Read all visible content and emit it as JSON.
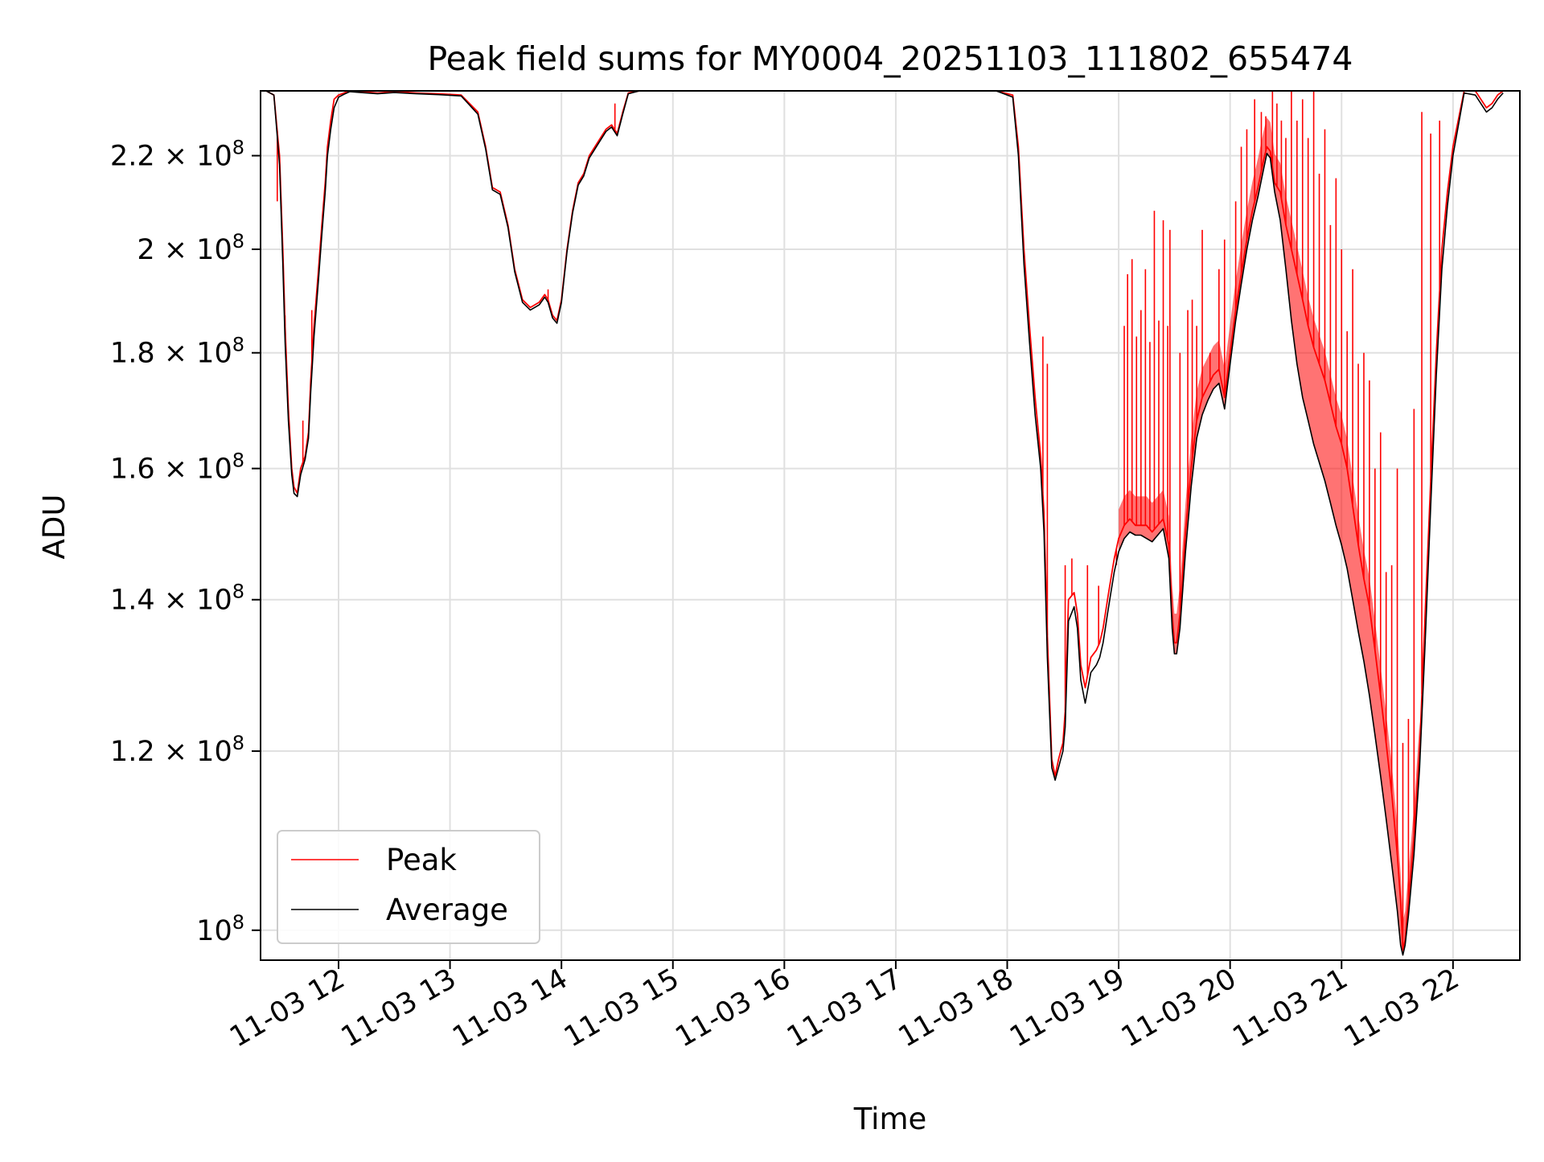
{
  "chart_data": {
    "type": "line",
    "title": "Peak field sums for MY0004_20251103_111802_655474",
    "xlabel": "Time",
    "ylabel": "ADU",
    "yscale": "log",
    "xlim": [
      11.3,
      22.6
    ],
    "ylim": [
      97000000.0,
      235000000.0
    ],
    "grid": true,
    "legend": {
      "placement": "lower-left",
      "entries": [
        "Peak",
        "Average"
      ]
    },
    "x_ticks": [
      {
        "value": 12,
        "label": "11-03 12"
      },
      {
        "value": 13,
        "label": "11-03 13"
      },
      {
        "value": 14,
        "label": "11-03 14"
      },
      {
        "value": 15,
        "label": "11-03 15"
      },
      {
        "value": 16,
        "label": "11-03 16"
      },
      {
        "value": 17,
        "label": "11-03 17"
      },
      {
        "value": 18,
        "label": "11-03 18"
      },
      {
        "value": 19,
        "label": "11-03 19"
      },
      {
        "value": 20,
        "label": "11-03 20"
      },
      {
        "value": 21,
        "label": "11-03 21"
      },
      {
        "value": 22,
        "label": "11-03 22"
      }
    ],
    "y_ticks": [
      {
        "value": 100000000.0,
        "mantissa": "",
        "base": "10",
        "exp": "8"
      },
      {
        "value": 120000000.0,
        "mantissa": "1.2 × ",
        "base": "10",
        "exp": "8"
      },
      {
        "value": 140000000.0,
        "mantissa": "1.4 × ",
        "base": "10",
        "exp": "8"
      },
      {
        "value": 160000000.0,
        "mantissa": "1.6 × ",
        "base": "10",
        "exp": "8"
      },
      {
        "value": 180000000.0,
        "mantissa": "1.8 × ",
        "base": "10",
        "exp": "8"
      },
      {
        "value": 200000000.0,
        "mantissa": "2 × ",
        "base": "10",
        "exp": "8"
      },
      {
        "value": 220000000.0,
        "mantissa": "2.2 × ",
        "base": "10",
        "exp": "8"
      }
    ],
    "series": [
      {
        "name": "Peak",
        "color": "#ff0000",
        "x": [
          11.3,
          11.35,
          11.42,
          11.47,
          11.5,
          11.52,
          11.55,
          11.58,
          11.6,
          11.63,
          11.66,
          11.7,
          11.73,
          11.75,
          11.78,
          11.82,
          11.85,
          11.88,
          11.9,
          11.93,
          11.96,
          12.0,
          12.05,
          12.1,
          12.2,
          12.35,
          12.5,
          12.7,
          12.9,
          13.1,
          13.25,
          13.32,
          13.38,
          13.45,
          13.52,
          13.58,
          13.65,
          13.72,
          13.8,
          13.85,
          13.88,
          13.92,
          13.96,
          14.0,
          14.05,
          14.1,
          14.15,
          14.2,
          14.25,
          14.3,
          14.35,
          14.4,
          14.45,
          14.5,
          14.55,
          14.6,
          14.7,
          15.0,
          16.0,
          17.0,
          17.9,
          18.05,
          18.1,
          18.15,
          18.2,
          18.25,
          18.3,
          18.33,
          18.36,
          18.4,
          18.43,
          18.46,
          18.48,
          18.5,
          18.52,
          18.55,
          18.6,
          18.63,
          18.66,
          18.7,
          18.75,
          18.8,
          18.83,
          18.86,
          18.88,
          18.9,
          18.93,
          18.96,
          19.0,
          19.05,
          19.1,
          19.15,
          19.2,
          19.25,
          19.3,
          19.35,
          19.4,
          19.45,
          19.48,
          19.5,
          19.52,
          19.55,
          19.6,
          19.65,
          19.7,
          19.75,
          19.8,
          19.85,
          19.9,
          19.95,
          20.0,
          20.05,
          20.1,
          20.15,
          20.2,
          20.25,
          20.3,
          20.33,
          20.36,
          20.4,
          20.45,
          20.5,
          20.55,
          20.6,
          20.65,
          20.7,
          20.75,
          20.8,
          20.85,
          20.9,
          20.95,
          21.0,
          21.05,
          21.1,
          21.15,
          21.2,
          21.25,
          21.3,
          21.35,
          21.4,
          21.45,
          21.5,
          21.53,
          21.55,
          21.57,
          21.6,
          21.65,
          21.7,
          21.75,
          21.8,
          21.85,
          21.9,
          21.95,
          22.0,
          22.1,
          22.2,
          22.3,
          22.35,
          22.4,
          22.45
        ],
        "values": [
          235000000.0,
          235000000.0,
          234000000.0,
          220000000.0,
          200000000.0,
          185000000.0,
          170000000.0,
          160000000.0,
          157000000.0,
          156000000.0,
          160000000.0,
          162000000.0,
          166000000.0,
          175000000.0,
          185000000.0,
          196000000.0,
          205000000.0,
          214000000.0,
          222000000.0,
          228000000.0,
          233000000.0,
          234000000.0,
          234500000.0,
          235000000.0,
          234800000.0,
          234500000.0,
          234800000.0,
          234500000.0,
          234300000.0,
          234000000.0,
          230000000.0,
          222000000.0,
          213000000.0,
          212000000.0,
          205000000.0,
          196000000.0,
          190000000.0,
          188500000.0,
          189500000.0,
          191000000.0,
          190000000.0,
          187000000.0,
          186000000.0,
          190000000.0,
          200000000.0,
          208000000.0,
          214000000.0,
          216000000.0,
          220000000.0,
          222000000.0,
          224000000.0,
          226000000.0,
          227000000.0,
          225000000.0,
          230000000.0,
          234500000.0,
          235000000.0,
          235000000.0,
          235000000.0,
          235000000.0,
          235000000.0,
          234000000.0,
          222000000.0,
          200000000.0,
          185000000.0,
          172000000.0,
          162000000.0,
          153000000.0,
          135000000.0,
          119000000.0,
          117000000.0,
          119000000.0,
          120000000.0,
          121000000.0,
          125000000.0,
          140000000.0,
          141000000.0,
          138000000.0,
          131000000.0,
          128000000.0,
          132000000.0,
          133000000.0,
          134000000.0,
          136000000.0,
          138000000.0,
          140000000.0,
          143000000.0,
          146000000.0,
          149000000.0,
          151000000.0,
          152000000.0,
          151000000.0,
          151000000.0,
          151000000.0,
          150000000.0,
          151000000.0,
          152000000.0,
          148000000.0,
          138000000.0,
          134000000.0,
          134000000.0,
          138000000.0,
          150000000.0,
          160000000.0,
          168000000.0,
          172000000.0,
          174000000.0,
          176000000.0,
          177000000.0,
          172000000.0,
          180000000.0,
          188000000.0,
          195000000.0,
          202000000.0,
          208000000.0,
          213000000.0,
          219000000.0,
          222000000.0,
          221000000.0,
          214000000.0,
          212000000.0,
          205000000.0,
          200000000.0,
          195000000.0,
          190000000.0,
          185000000.0,
          181000000.0,
          178000000.0,
          175000000.0,
          171000000.0,
          167000000.0,
          164000000.0,
          160000000.0,
          154000000.0,
          148000000.0,
          143000000.0,
          139000000.0,
          133000000.0,
          127000000.0,
          121000000.0,
          115000000.0,
          108000000.0,
          103000000.0,
          98000000.0,
          99000000.0,
          103000000.0,
          110000000.0,
          120000000.0,
          138000000.0,
          158000000.0,
          180000000.0,
          200000000.0,
          212000000.0,
          222000000.0,
          235000000.0,
          235000000.0,
          231000000.0,
          232000000.0,
          234000000.0,
          235000000.0
        ],
        "spikes": [
          [
            11.45,
            210000000.0
          ],
          [
            11.52,
            187000000.0
          ],
          [
            11.68,
            168000000.0
          ],
          [
            11.76,
            188000000.0
          ],
          [
            11.94,
            230000000.0
          ],
          [
            13.88,
            192000000.0
          ],
          [
            14.48,
            232000000.0
          ],
          [
            18.32,
            183000000.0
          ],
          [
            18.36,
            178000000.0
          ],
          [
            18.52,
            145000000.0
          ],
          [
            18.58,
            146000000.0
          ],
          [
            18.72,
            145000000.0
          ],
          [
            18.82,
            142000000.0
          ],
          [
            18.98,
            145000000.0
          ],
          [
            19.05,
            185000000.0
          ],
          [
            19.08,
            195000000.0
          ],
          [
            19.12,
            198000000.0
          ],
          [
            19.16,
            183000000.0
          ],
          [
            19.2,
            188000000.0
          ],
          [
            19.24,
            196000000.0
          ],
          [
            19.28,
            182000000.0
          ],
          [
            19.32,
            208000000.0
          ],
          [
            19.36,
            186000000.0
          ],
          [
            19.4,
            206000000.0
          ],
          [
            19.44,
            185000000.0
          ],
          [
            19.46,
            204000000.0
          ],
          [
            19.55,
            180000000.0
          ],
          [
            19.62,
            188000000.0
          ],
          [
            19.66,
            190000000.0
          ],
          [
            19.7,
            185000000.0
          ],
          [
            19.75,
            204000000.0
          ],
          [
            19.82,
            180000000.0
          ],
          [
            19.9,
            196000000.0
          ],
          [
            19.95,
            202000000.0
          ],
          [
            20.05,
            210000000.0
          ],
          [
            20.1,
            222000000.0
          ],
          [
            20.15,
            226000000.0
          ],
          [
            20.22,
            233000000.0
          ],
          [
            20.28,
            230000000.0
          ],
          [
            20.32,
            229000000.0
          ],
          [
            20.38,
            235000000.0
          ],
          [
            20.42,
            232000000.0
          ],
          [
            20.46,
            228000000.0
          ],
          [
            20.5,
            224000000.0
          ],
          [
            20.55,
            235000000.0
          ],
          [
            20.6,
            228000000.0
          ],
          [
            20.65,
            233000000.0
          ],
          [
            20.7,
            224000000.0
          ],
          [
            20.75,
            235000000.0
          ],
          [
            20.8,
            216000000.0
          ],
          [
            20.85,
            226000000.0
          ],
          [
            20.9,
            205000000.0
          ],
          [
            20.95,
            215000000.0
          ],
          [
            21.0,
            200000000.0
          ],
          [
            21.05,
            184000000.0
          ],
          [
            21.1,
            196000000.0
          ],
          [
            21.15,
            178000000.0
          ],
          [
            21.2,
            180000000.0
          ],
          [
            21.25,
            175000000.0
          ],
          [
            21.3,
            160000000.0
          ],
          [
            21.35,
            166000000.0
          ],
          [
            21.4,
            144000000.0
          ],
          [
            21.45,
            145000000.0
          ],
          [
            21.5,
            160000000.0
          ],
          [
            21.55,
            121000000.0
          ],
          [
            21.6,
            124000000.0
          ],
          [
            21.65,
            170000000.0
          ],
          [
            21.72,
            230000000.0
          ],
          [
            21.8,
            225000000.0
          ],
          [
            21.88,
            228000000.0
          ]
        ]
      },
      {
        "name": "Average",
        "color": "#000000",
        "x": [
          11.3,
          11.35,
          11.42,
          11.47,
          11.5,
          11.52,
          11.55,
          11.58,
          11.6,
          11.63,
          11.66,
          11.7,
          11.73,
          11.75,
          11.78,
          11.82,
          11.85,
          11.88,
          11.9,
          11.93,
          11.96,
          12.0,
          12.05,
          12.1,
          12.2,
          12.35,
          12.5,
          12.7,
          12.9,
          13.1,
          13.25,
          13.32,
          13.38,
          13.45,
          13.52,
          13.58,
          13.65,
          13.72,
          13.8,
          13.85,
          13.88,
          13.92,
          13.96,
          14.0,
          14.05,
          14.1,
          14.15,
          14.2,
          14.25,
          14.3,
          14.35,
          14.4,
          14.45,
          14.5,
          14.55,
          14.6,
          14.7,
          15.0,
          16.0,
          17.0,
          17.9,
          18.05,
          18.1,
          18.15,
          18.2,
          18.25,
          18.3,
          18.33,
          18.36,
          18.4,
          18.43,
          18.46,
          18.48,
          18.5,
          18.52,
          18.55,
          18.6,
          18.63,
          18.66,
          18.7,
          18.75,
          18.8,
          18.83,
          18.86,
          18.88,
          18.9,
          18.93,
          18.96,
          19.0,
          19.05,
          19.1,
          19.15,
          19.2,
          19.25,
          19.3,
          19.35,
          19.4,
          19.45,
          19.48,
          19.5,
          19.52,
          19.55,
          19.6,
          19.65,
          19.7,
          19.75,
          19.8,
          19.85,
          19.9,
          19.95,
          20.0,
          20.05,
          20.1,
          20.15,
          20.2,
          20.25,
          20.3,
          20.33,
          20.36,
          20.4,
          20.45,
          20.5,
          20.55,
          20.6,
          20.65,
          20.7,
          20.75,
          20.8,
          20.85,
          20.9,
          20.95,
          21.0,
          21.05,
          21.1,
          21.15,
          21.2,
          21.25,
          21.3,
          21.35,
          21.4,
          21.45,
          21.5,
          21.53,
          21.55,
          21.57,
          21.6,
          21.65,
          21.7,
          21.75,
          21.8,
          21.85,
          21.9,
          21.95,
          22.0,
          22.1,
          22.2,
          22.3,
          22.35,
          22.4,
          22.45
        ],
        "values": [
          235000000.0,
          235000000.0,
          234000000.0,
          218000000.0,
          197000000.0,
          182000000.0,
          168000000.0,
          159000000.0,
          156000000.0,
          155500000.0,
          159000000.0,
          161500000.0,
          165000000.0,
          173000000.0,
          183000000.0,
          194000000.0,
          203000000.0,
          212000000.0,
          220000000.0,
          226000000.0,
          231000000.0,
          233500000.0,
          234200000.0,
          234800000.0,
          234600000.0,
          234300000.0,
          234600000.0,
          234300000.0,
          234100000.0,
          233800000.0,
          229500000.0,
          221500000.0,
          212500000.0,
          211500000.0,
          204500000.0,
          195500000.0,
          189500000.0,
          188000000.0,
          189000000.0,
          190500000.0,
          189500000.0,
          186500000.0,
          185500000.0,
          189500000.0,
          199500000.0,
          207500000.0,
          213500000.0,
          215500000.0,
          219500000.0,
          221500000.0,
          223500000.0,
          225500000.0,
          226500000.0,
          224500000.0,
          229500000.0,
          234300000.0,
          235000000.0,
          235000000.0,
          235000000.0,
          235000000.0,
          235000000.0,
          233500000.0,
          220000000.0,
          197000000.0,
          182000000.0,
          169000000.0,
          160000000.0,
          150000000.0,
          132000000.0,
          118000000.0,
          116500000.0,
          118000000.0,
          119000000.0,
          120000000.0,
          123000000.0,
          137000000.0,
          139000000.0,
          136000000.0,
          129000000.0,
          126000000.0,
          130000000.0,
          131000000.0,
          132000000.0,
          134000000.0,
          136000000.0,
          138000000.0,
          141000000.0,
          144000000.0,
          147000000.0,
          149000000.0,
          150000000.0,
          149500000.0,
          149500000.0,
          149000000.0,
          148500000.0,
          149500000.0,
          150500000.0,
          146000000.0,
          136000000.0,
          132500000.0,
          132500000.0,
          136000000.0,
          147000000.0,
          157000000.0,
          165000000.0,
          169000000.0,
          171500000.0,
          173500000.0,
          174500000.0,
          170000000.0,
          178000000.0,
          186000000.0,
          193000000.0,
          200000000.0,
          206000000.0,
          211000000.0,
          217000000.0,
          220500000.0,
          219500000.0,
          212000000.0,
          206000000.0,
          196000000.0,
          186000000.0,
          178000000.0,
          172000000.0,
          168000000.0,
          164000000.0,
          161000000.0,
          158000000.0,
          154500000.0,
          151000000.0,
          148000000.0,
          144500000.0,
          140000000.0,
          135500000.0,
          131500000.0,
          127000000.0,
          122000000.0,
          117000000.0,
          112000000.0,
          107000000.0,
          102000000.0,
          98500000.0,
          97500000.0,
          98500000.0,
          101500000.0,
          108000000.0,
          118000000.0,
          134000000.0,
          154000000.0,
          176000000.0,
          196000000.0,
          209000000.0,
          220000000.0,
          234500000.0,
          234000000.0,
          230000000.0,
          231000000.0,
          233000000.0,
          234500000.0
        ],
        "spikes": []
      }
    ]
  }
}
